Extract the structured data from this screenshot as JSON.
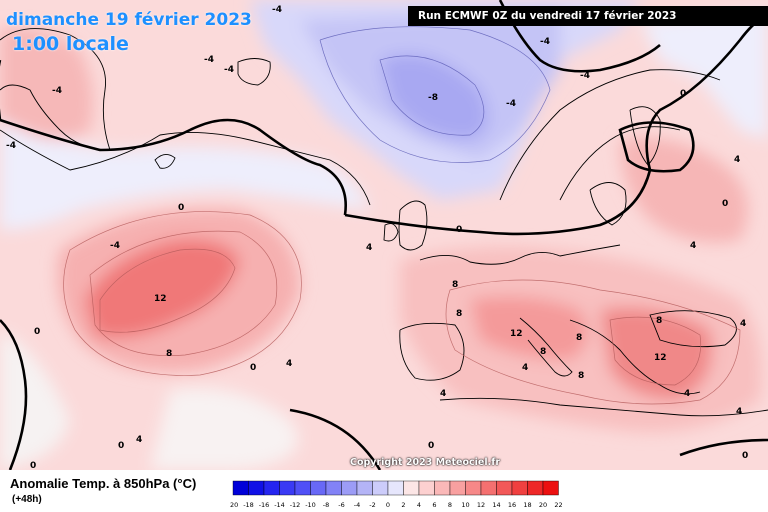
{
  "header": {
    "date": "dimanche 19 février 2023",
    "time": "1:00 locale",
    "run": "Run ECMWF 0Z du vendredi 17 février 2023"
  },
  "footer": {
    "copyright": "Copyright 2023 Meteociel.fr",
    "variable": "Anomalie Temp. à 850hPa (°C)",
    "step": "(+48h)"
  },
  "legend": {
    "values": [
      "-20",
      "-18",
      "-16",
      "-14",
      "-12",
      "-10",
      "-8",
      "-6",
      "-4",
      "-2",
      "0",
      "2",
      "4",
      "6",
      "8",
      "10",
      "12",
      "14",
      "16",
      "18",
      "20",
      "22"
    ],
    "colors": [
      "#0000d8",
      "#1010e6",
      "#2525f0",
      "#3a3af4",
      "#5050f6",
      "#6868f6",
      "#8282f6",
      "#9c9cf6",
      "#b4b4f6",
      "#ccccfa",
      "#e6e6fc",
      "#fce6e6",
      "#fcd0d0",
      "#fab8b8",
      "#f8a0a0",
      "#f68888",
      "#f47070",
      "#f25858",
      "#f04040",
      "#ee2828",
      "#ec1010"
    ]
  },
  "contour_labels": [
    "-8",
    "-4",
    "-4",
    "-4",
    "-4",
    "-4",
    "-4",
    "-4",
    "4",
    "8",
    "0",
    "0",
    "0",
    "0",
    "4",
    "4",
    "12",
    "8",
    "8",
    "8",
    "12",
    "8",
    "12",
    "8",
    "4",
    "4",
    "4",
    "4",
    "8",
    "0",
    "0",
    "0",
    "4",
    "4",
    "0",
    "0",
    "0",
    "4",
    "-4",
    "-4"
  ],
  "colors": {
    "background": "#ffffff",
    "title_blue": "#1e90ff"
  }
}
